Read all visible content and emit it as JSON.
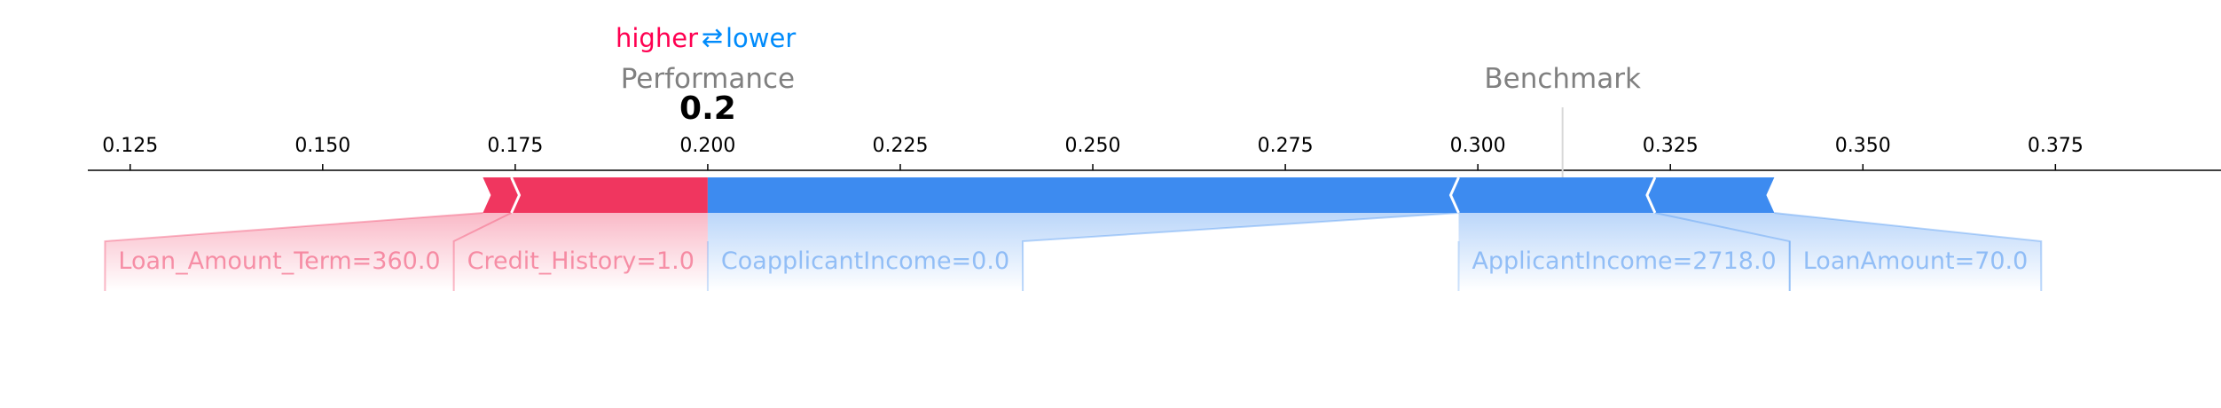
{
  "chart_data": {
    "type": "force",
    "direction_legend": {
      "higher": "higher",
      "arrow": "⇄",
      "lower": "lower"
    },
    "output_label": "Performance",
    "base_label": "Benchmark",
    "output_value": 0.2,
    "output_value_text": "0.2",
    "base_value": 0.311,
    "xlim": [
      0.1195,
      0.3965
    ],
    "ticks": [
      0.125,
      0.15,
      0.175,
      0.2,
      0.225,
      0.25,
      0.275,
      0.3,
      0.325,
      0.35,
      0.375
    ],
    "tick_labels": [
      "0.125",
      "0.150",
      "0.175",
      "0.200",
      "0.225",
      "0.250",
      "0.275",
      "0.300",
      "0.325",
      "0.350",
      "0.375"
    ],
    "positive_features": [
      {
        "label": "Credit_History=1.0",
        "start": 0.2,
        "end": 0.1745
      },
      {
        "label": "Loan_Amount_Term=360.0",
        "start": 0.1745,
        "end": 0.1708
      }
    ],
    "negative_features": [
      {
        "label": "CoapplicantIncome=0.0",
        "start": 0.2,
        "end": 0.2975
      },
      {
        "label": "ApplicantIncome=2718.0",
        "start": 0.2975,
        "end": 0.323
      },
      {
        "label": "LoanAmount=70.0",
        "start": 0.323,
        "end": 0.3385
      }
    ],
    "colors": {
      "positive": "#ff0051",
      "negative": "#008bfb",
      "positive_bar": "#f0365f",
      "negative_bar": "#3d8bf0",
      "label_gray": "#808080"
    }
  }
}
